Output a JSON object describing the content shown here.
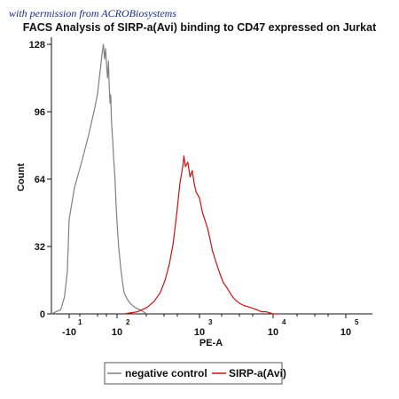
{
  "watermark": "with permission from ACROBiosystems",
  "chart_data": {
    "type": "line",
    "title": "FACS Analysis of SIRP-a(Avi) binding to CD47 expressed on Jurkat",
    "xlabel": "PE-A",
    "ylabel": "Count",
    "x_scale": "biexponential",
    "ylim": [
      0,
      128
    ],
    "y_ticks": [
      0,
      32,
      64,
      96,
      128
    ],
    "x_ticks": [
      {
        "base": "-10",
        "exp": "1"
      },
      {
        "base": "10",
        "exp": "2"
      },
      {
        "base": "10",
        "exp": "3"
      },
      {
        "base": "10",
        "exp": "4"
      },
      {
        "base": "10",
        "exp": "5"
      }
    ],
    "grid": false,
    "legend_position": "bottom-left",
    "series": [
      {
        "name": "negative control",
        "color": "#808080",
        "x": [
          -200,
          -150,
          -100,
          -60,
          -30,
          -10,
          0,
          5,
          10,
          15,
          18,
          20,
          22,
          24,
          26,
          28,
          30,
          32,
          34,
          36,
          38,
          40,
          42,
          44,
          46,
          48,
          50,
          55,
          60,
          65,
          70,
          80,
          90,
          100,
          110,
          120,
          140,
          160,
          180,
          200
        ],
        "y": [
          0,
          1,
          2,
          8,
          20,
          45,
          60,
          72,
          85,
          98,
          105,
          112,
          118,
          124,
          128,
          121,
          126,
          118,
          112,
          120,
          108,
          100,
          104,
          92,
          86,
          82,
          75,
          65,
          50,
          40,
          32,
          22,
          15,
          10,
          7,
          5,
          3,
          2,
          1,
          0
        ]
      },
      {
        "name": "SIRP-a(Avi)",
        "color": "#cc1111",
        "x": [
          100,
          150,
          200,
          250,
          300,
          350,
          400,
          450,
          500,
          550,
          600,
          620,
          650,
          700,
          750,
          800,
          850,
          900,
          1000,
          1100,
          1200,
          1300,
          1400,
          1500,
          1700,
          1900,
          2100,
          2400,
          2700,
          3000,
          3500,
          4000,
          5000,
          6000,
          7000,
          8000,
          10000,
          12000
        ],
        "y": [
          0,
          1,
          3,
          6,
          10,
          16,
          24,
          34,
          48,
          62,
          70,
          75,
          70,
          72,
          65,
          68,
          62,
          58,
          55,
          48,
          44,
          40,
          35,
          30,
          24,
          19,
          15,
          12,
          9,
          7,
          5,
          4,
          3,
          2,
          1,
          1,
          0,
          0
        ]
      }
    ]
  }
}
